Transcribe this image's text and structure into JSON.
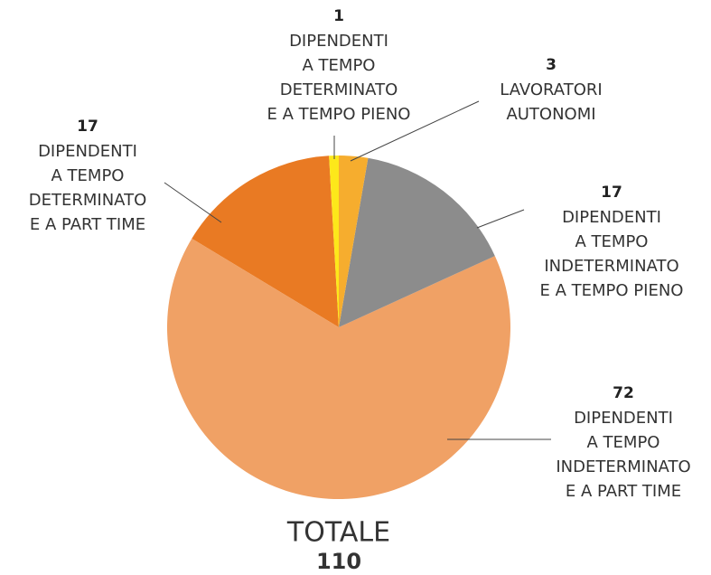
{
  "chart_data": {
    "type": "pie",
    "categories": [
      [
        "DIPENDENTI",
        "A TEMPO",
        "DETERMINATO",
        "E A TEMPO PIENO"
      ],
      [
        "LAVORATORI",
        "AUTONOMI"
      ],
      [
        "DIPENDENTI",
        "A TEMPO",
        "INDETERMINATO",
        "E A TEMPO PIENO"
      ],
      [
        "DIPENDENTI",
        "A TEMPO",
        "INDETERMINATO",
        "E A PART TIME"
      ],
      [
        "DIPENDENTI",
        "A TEMPO",
        "DETERMINATO",
        "E A PART TIME"
      ]
    ],
    "values": [
      1,
      3,
      17,
      72,
      17
    ],
    "colors": [
      "#fde81a",
      "#f6ad2e",
      "#8c8c8c",
      "#f0a165",
      "#e97a23"
    ],
    "total": {
      "label": "TOTALE",
      "value": 110,
      "color": "#e97a23"
    }
  }
}
